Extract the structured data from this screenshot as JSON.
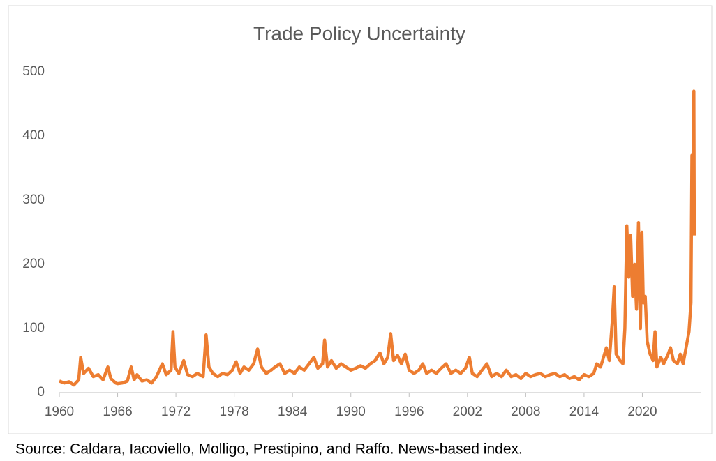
{
  "chart_data": {
    "type": "line",
    "title": "Trade Policy Uncertainty",
    "source": "Source:  Caldara, Iacoviello, Molligo, Prestipino, and Raffo. News-based index.",
    "xlim": [
      1960,
      2026
    ],
    "xticks": [
      1960,
      1966,
      1972,
      1978,
      1984,
      1990,
      1996,
      2002,
      2008,
      2014,
      2020
    ],
    "ylim": [
      0,
      500
    ],
    "yticks": [
      0,
      100,
      200,
      300,
      400,
      500
    ],
    "grid": false,
    "series": [
      {
        "color": "#ed7d31",
        "x": [
          1960,
          1960.5,
          1961,
          1961.5,
          1962,
          1962.2,
          1962.5,
          1963,
          1963.5,
          1964,
          1964.5,
          1965,
          1965.3,
          1965.8,
          1966,
          1966.5,
          1967,
          1967.4,
          1967.7,
          1968,
          1968.5,
          1969,
          1969.5,
          1970,
          1970.6,
          1971,
          1971.5,
          1971.7,
          1971.9,
          1972.3,
          1972.8,
          1973.2,
          1973.7,
          1974.2,
          1974.8,
          1975.1,
          1975.4,
          1975.8,
          1976.3,
          1976.8,
          1977.3,
          1977.8,
          1978.2,
          1978.6,
          1979,
          1979.5,
          1980,
          1980.4,
          1980.8,
          1981.3,
          1981.8,
          1982.2,
          1982.7,
          1983.2,
          1983.7,
          1984.2,
          1984.7,
          1985.2,
          1985.7,
          1986.2,
          1986.6,
          1987.1,
          1987.3,
          1987.6,
          1988,
          1988.5,
          1989,
          1989.5,
          1990,
          1990.5,
          1991,
          1991.5,
          1992,
          1992.5,
          1993,
          1993.4,
          1993.8,
          1994.1,
          1994.4,
          1994.8,
          1995.2,
          1995.6,
          1996,
          1996.5,
          1997,
          1997.4,
          1997.8,
          1998.3,
          1998.8,
          1999.3,
          1999.8,
          2000.3,
          2000.8,
          2001.3,
          2001.8,
          2002.2,
          2002.5,
          2003,
          2003.5,
          2004,
          2004.5,
          2005,
          2005.5,
          2006,
          2006.5,
          2007,
          2007.5,
          2008,
          2008.5,
          2009,
          2009.5,
          2010,
          2010.5,
          2011,
          2011.5,
          2012,
          2012.5,
          2013,
          2013.5,
          2014,
          2014.5,
          2015,
          2015.3,
          2015.7,
          2016,
          2016.3,
          2016.6,
          2016.9,
          2017.1,
          2017.3,
          2017.7,
          2018,
          2018.2,
          2018.4,
          2018.6,
          2018.8,
          2019,
          2019.2,
          2019.4,
          2019.6,
          2019.8,
          2019.95,
          2020.1,
          2020.3,
          2020.5,
          2020.8,
          2021.1,
          2021.3,
          2021.5,
          2021.9,
          2022.2,
          2022.6,
          2022.9,
          2023.2,
          2023.6,
          2023.9,
          2024.2,
          2024.5,
          2024.8,
          2025,
          2025.1,
          2025.2,
          2025.3,
          2025.35
        ],
        "values": [
          18,
          15,
          17,
          12,
          20,
          55,
          30,
          38,
          25,
          28,
          20,
          40,
          22,
          15,
          14,
          15,
          18,
          40,
          20,
          28,
          18,
          20,
          15,
          25,
          45,
          28,
          35,
          95,
          40,
          30,
          50,
          28,
          25,
          30,
          25,
          90,
          40,
          30,
          25,
          30,
          28,
          35,
          48,
          30,
          40,
          35,
          45,
          68,
          40,
          30,
          35,
          40,
          45,
          30,
          35,
          30,
          40,
          35,
          45,
          55,
          38,
          45,
          82,
          40,
          50,
          38,
          45,
          40,
          35,
          38,
          42,
          38,
          45,
          50,
          62,
          45,
          55,
          92,
          50,
          58,
          45,
          60,
          35,
          30,
          35,
          45,
          30,
          35,
          30,
          38,
          45,
          30,
          35,
          30,
          38,
          55,
          30,
          25,
          35,
          45,
          25,
          30,
          25,
          35,
          25,
          28,
          22,
          30,
          25,
          28,
          30,
          25,
          28,
          30,
          25,
          28,
          22,
          25,
          20,
          28,
          25,
          30,
          45,
          40,
          55,
          70,
          50,
          110,
          165,
          60,
          50,
          45,
          100,
          260,
          180,
          245,
          150,
          200,
          130,
          265,
          100,
          250,
          140,
          150,
          80,
          60,
          50,
          95,
          40,
          55,
          45,
          58,
          70,
          50,
          45,
          60,
          45,
          70,
          95,
          140,
          370,
          250,
          470,
          245
        ]
      }
    ]
  }
}
